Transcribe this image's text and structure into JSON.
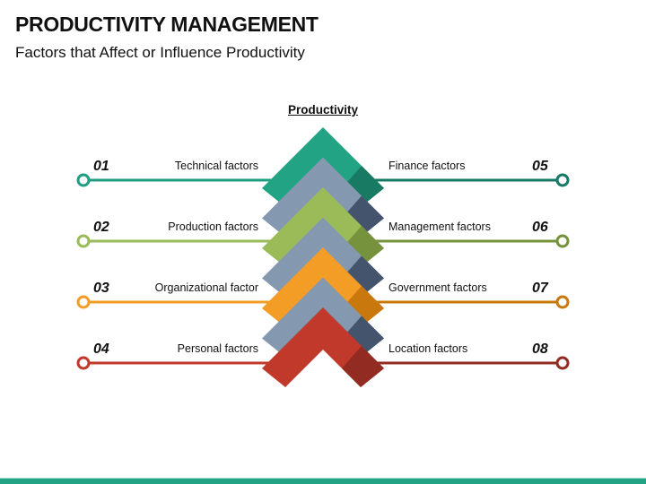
{
  "header": {
    "title": "PRODUCTIVITY MANAGEMENT",
    "subtitle": "Factors that Affect or Influence Productivity"
  },
  "diagram": {
    "center_title": "Productivity",
    "left_factors": [
      {
        "number": "01",
        "label": "Technical factors",
        "color": "#1f9e80"
      },
      {
        "number": "02",
        "label": "Production factors",
        "color": "#9abb59"
      },
      {
        "number": "03",
        "label": "Organizational factor",
        "color": "#f39c26"
      },
      {
        "number": "04",
        "label": "Personal factors",
        "color": "#c0392b"
      }
    ],
    "right_factors": [
      {
        "number": "05",
        "label": "Finance factors",
        "color": "#157a63"
      },
      {
        "number": "06",
        "label": "Management factors",
        "color": "#76923c"
      },
      {
        "number": "07",
        "label": "Government factors",
        "color": "#c8780c"
      },
      {
        "number": "08",
        "label": "Location factors",
        "color": "#922b21"
      }
    ],
    "chevrons": [
      {
        "name": "teal",
        "main": "#21a384",
        "shade": "#187a63"
      },
      {
        "name": "gray",
        "main": "#8498b0",
        "shade": "#44546c"
      },
      {
        "name": "green",
        "main": "#9bbb59",
        "shade": "#76923c"
      },
      {
        "name": "gray",
        "main": "#8498b0",
        "shade": "#44546c"
      },
      {
        "name": "orange",
        "main": "#f39c26",
        "shade": "#c8780c"
      },
      {
        "name": "gray",
        "main": "#8498b0",
        "shade": "#44546c"
      },
      {
        "name": "red",
        "main": "#c0392b",
        "shade": "#922b21"
      }
    ]
  },
  "footer": {
    "bar_color": "#21a384"
  }
}
